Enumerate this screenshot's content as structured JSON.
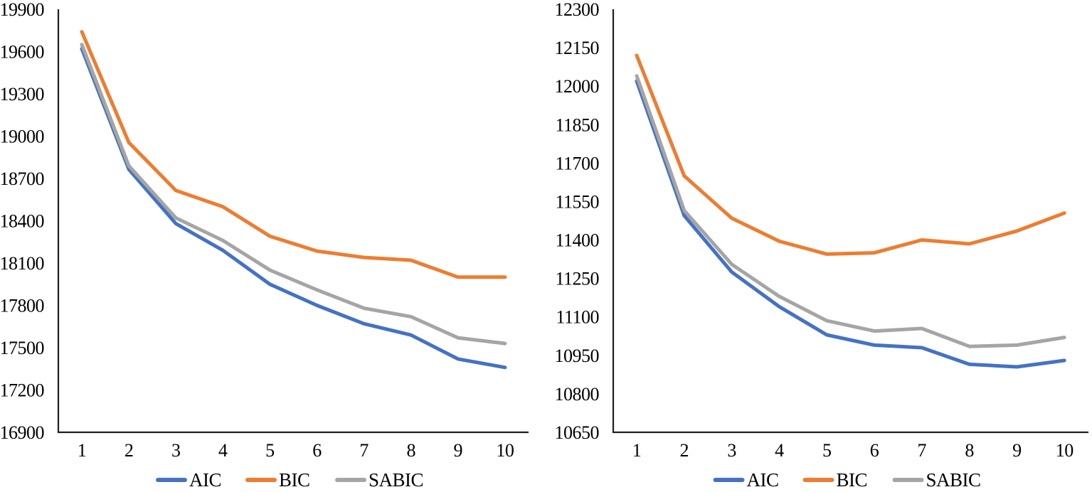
{
  "figure": {
    "kind": "dual-line-chart-figure",
    "background": "#ffffff",
    "axis_color": "#1f1f1f",
    "text_color": "#000000"
  },
  "chart_data": [
    {
      "type": "line",
      "title": "",
      "xlabel": "",
      "ylabel": "",
      "x": [
        1,
        2,
        3,
        4,
        5,
        6,
        7,
        8,
        9,
        10
      ],
      "ylim": [
        16900,
        19900
      ],
      "ytick_step": 300,
      "yticks": [
        19900,
        19600,
        19300,
        19000,
        18700,
        18400,
        18100,
        17800,
        17500,
        17200,
        16900
      ],
      "grid": false,
      "legend_position": "bottom",
      "series": [
        {
          "name": "AIC",
          "color": "#4472C4",
          "values": [
            19620,
            18765,
            18380,
            18190,
            17950,
            17800,
            17670,
            17590,
            17420,
            17360
          ]
        },
        {
          "name": "BIC",
          "color": "#ED7D31",
          "values": [
            19740,
            18955,
            18615,
            18500,
            18290,
            18185,
            18140,
            18120,
            18000,
            18000
          ]
        },
        {
          "name": "SABIC",
          "color": "#A5A5A5",
          "values": [
            19650,
            18790,
            18420,
            18260,
            18050,
            17910,
            17780,
            17720,
            17570,
            17530
          ]
        }
      ]
    },
    {
      "type": "line",
      "title": "",
      "xlabel": "",
      "ylabel": "",
      "x": [
        1,
        2,
        3,
        4,
        5,
        6,
        7,
        8,
        9,
        10
      ],
      "ylim": [
        10650,
        12300
      ],
      "ytick_step": 150,
      "yticks": [
        12300,
        12150,
        12000,
        11850,
        11700,
        11550,
        11400,
        11250,
        11100,
        10950,
        10800,
        10650
      ],
      "grid": false,
      "legend_position": "bottom",
      "series": [
        {
          "name": "AIC",
          "color": "#4472C4",
          "values": [
            12020,
            11495,
            11275,
            11140,
            11030,
            10990,
            10980,
            10915,
            10905,
            10930
          ]
        },
        {
          "name": "BIC",
          "color": "#ED7D31",
          "values": [
            12120,
            11650,
            11485,
            11395,
            11345,
            11350,
            11400,
            11385,
            11435,
            11505
          ]
        },
        {
          "name": "SABIC",
          "color": "#A5A5A5",
          "values": [
            12040,
            11515,
            11305,
            11180,
            11085,
            11045,
            11055,
            10985,
            10990,
            11020
          ]
        }
      ]
    }
  ]
}
